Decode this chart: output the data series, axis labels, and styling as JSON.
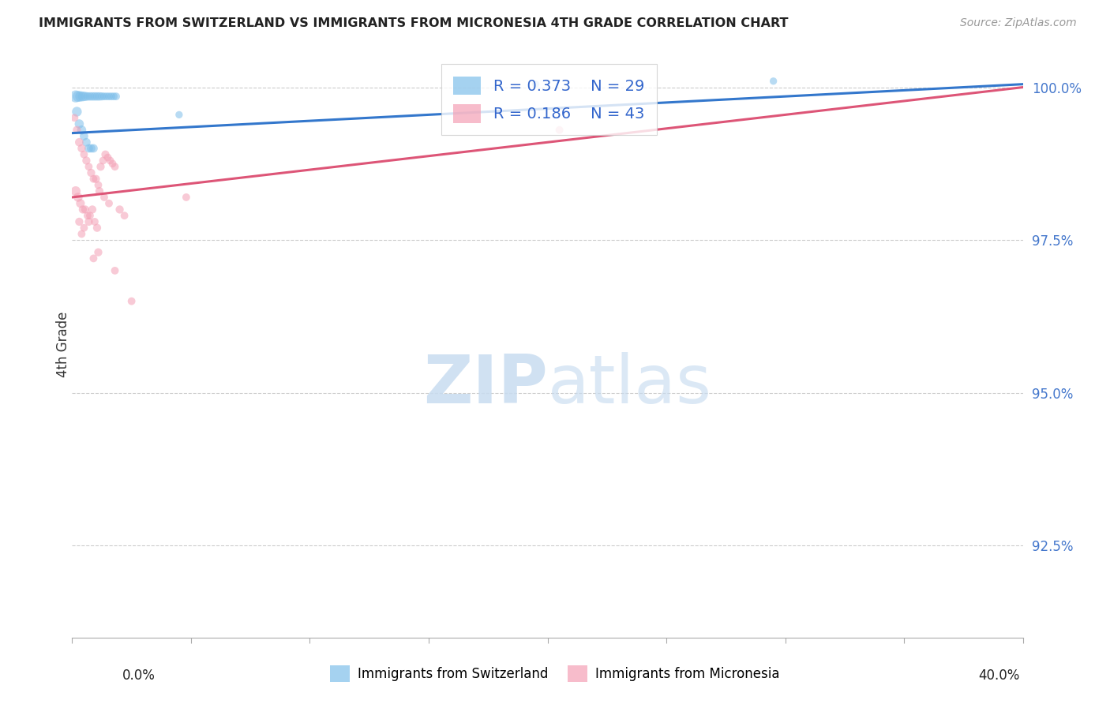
{
  "title": "IMMIGRANTS FROM SWITZERLAND VS IMMIGRANTS FROM MICRONESIA 4TH GRADE CORRELATION CHART",
  "source": "Source: ZipAtlas.com",
  "ylabel": "4th Grade",
  "ytick_labels": [
    "92.5%",
    "95.0%",
    "97.5%",
    "100.0%"
  ],
  "ytick_values": [
    92.5,
    95.0,
    97.5,
    100.0
  ],
  "xmin": 0.0,
  "xmax": 40.0,
  "ymin": 91.0,
  "ymax": 100.6,
  "legend_blue_r": "R = 0.373",
  "legend_blue_n": "N = 29",
  "legend_pink_r": "R = 0.186",
  "legend_pink_n": "N = 43",
  "legend_label_blue": "Immigrants from Switzerland",
  "legend_label_pink": "Immigrants from Micronesia",
  "blue_color": "#7fbfea",
  "pink_color": "#f4a0b5",
  "trendline_blue": "#3377cc",
  "trendline_pink": "#dd5577",
  "blue_scatter_x": [
    0.15,
    0.25,
    0.35,
    0.45,
    0.55,
    0.65,
    0.75,
    0.85,
    0.95,
    1.05,
    1.15,
    1.25,
    1.35,
    1.45,
    1.55,
    1.65,
    1.75,
    1.85,
    0.2,
    0.3,
    0.4,
    0.5,
    0.6,
    0.7,
    0.8,
    0.9,
    4.5,
    19.5,
    29.5
  ],
  "blue_scatter_y": [
    99.85,
    99.85,
    99.85,
    99.85,
    99.85,
    99.85,
    99.85,
    99.85,
    99.85,
    99.85,
    99.85,
    99.85,
    99.85,
    99.85,
    99.85,
    99.85,
    99.85,
    99.85,
    99.6,
    99.4,
    99.3,
    99.2,
    99.1,
    99.0,
    99.0,
    99.0,
    99.55,
    100.05,
    100.1
  ],
  "blue_scatter_size": [
    120,
    100,
    90,
    80,
    70,
    60,
    60,
    60,
    60,
    60,
    60,
    55,
    50,
    50,
    50,
    50,
    50,
    50,
    80,
    70,
    70,
    60,
    60,
    60,
    60,
    60,
    45,
    45,
    45
  ],
  "pink_scatter_x": [
    0.1,
    0.2,
    0.3,
    0.4,
    0.5,
    0.6,
    0.7,
    0.8,
    0.9,
    1.0,
    1.1,
    1.2,
    1.3,
    1.4,
    1.5,
    1.6,
    1.7,
    1.8,
    0.15,
    0.25,
    0.35,
    0.55,
    0.65,
    0.85,
    0.95,
    1.15,
    1.35,
    1.55,
    0.45,
    0.75,
    1.05,
    0.4,
    2.0,
    2.2,
    0.3,
    0.5,
    0.7,
    0.9,
    1.1,
    4.8,
    20.5,
    1.8,
    2.5
  ],
  "pink_scatter_y": [
    99.5,
    99.3,
    99.1,
    99.0,
    98.9,
    98.8,
    98.7,
    98.6,
    98.5,
    98.5,
    98.4,
    98.7,
    98.8,
    98.9,
    98.85,
    98.8,
    98.75,
    98.7,
    98.3,
    98.2,
    98.1,
    98.0,
    97.9,
    98.0,
    97.8,
    98.3,
    98.2,
    98.1,
    98.0,
    97.9,
    97.7,
    97.6,
    98.0,
    97.9,
    97.8,
    97.7,
    97.8,
    97.2,
    97.3,
    98.2,
    99.3,
    97.0,
    96.5
  ],
  "pink_scatter_size": [
    50,
    55,
    60,
    55,
    50,
    55,
    50,
    55,
    50,
    55,
    50,
    55,
    50,
    55,
    50,
    50,
    50,
    50,
    80,
    70,
    65,
    55,
    50,
    55,
    50,
    55,
    50,
    50,
    55,
    50,
    55,
    50,
    55,
    50,
    55,
    50,
    55,
    50,
    55,
    50,
    50,
    50,
    50
  ],
  "blue_trend_x0": 0.0,
  "blue_trend_y0": 99.25,
  "blue_trend_x1": 40.0,
  "blue_trend_y1": 100.05,
  "pink_trend_x0": 0.0,
  "pink_trend_y0": 98.2,
  "pink_trend_x1": 40.0,
  "pink_trend_y1": 100.0,
  "watermark_zip": "ZIP",
  "watermark_atlas": "atlas",
  "background_color": "#ffffff",
  "grid_color": "#cccccc"
}
